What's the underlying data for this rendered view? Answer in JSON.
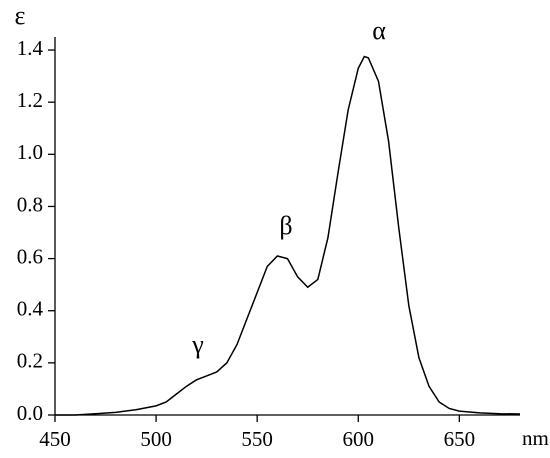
{
  "chart_data": {
    "type": "line",
    "y_label": "ε",
    "x_label": "nm",
    "annotations": [
      "α",
      "β",
      "γ"
    ],
    "x": [
      450,
      460,
      470,
      480,
      490,
      500,
      505,
      510,
      515,
      520,
      525,
      530,
      535,
      540,
      545,
      550,
      555,
      560,
      565,
      570,
      575,
      580,
      585,
      590,
      595,
      600,
      603,
      605,
      610,
      615,
      620,
      625,
      630,
      635,
      640,
      645,
      650,
      660,
      670,
      680
    ],
    "series": [
      {
        "name": "ε",
        "color": "#000000",
        "values": [
          0.0,
          0.0,
          0.005,
          0.01,
          0.02,
          0.035,
          0.05,
          0.08,
          0.11,
          0.135,
          0.15,
          0.165,
          0.2,
          0.27,
          0.37,
          0.47,
          0.57,
          0.61,
          0.6,
          0.53,
          0.49,
          0.52,
          0.68,
          0.93,
          1.17,
          1.33,
          1.375,
          1.37,
          1.28,
          1.05,
          0.72,
          0.42,
          0.22,
          0.11,
          0.05,
          0.025,
          0.015,
          0.008,
          0.005,
          0.004
        ]
      }
    ],
    "xlim": [
      450,
      680
    ],
    "ylim": [
      0,
      1.45
    ],
    "xticks": [
      450,
      500,
      550,
      600,
      650
    ],
    "yticks": [
      {
        "value": 0,
        "label": "0.0"
      },
      {
        "value": 0.2,
        "label": "0.2"
      },
      {
        "value": 0.4,
        "label": "0.4"
      },
      {
        "value": 0.6,
        "label": "0.6"
      },
      {
        "value": 0.8,
        "label": "0.8"
      },
      {
        "value": 1,
        "label": "1.0"
      },
      {
        "value": 1.2,
        "label": "1.2"
      },
      {
        "value": 1.4,
        "label": "1.4"
      }
    ],
    "grid": false
  }
}
